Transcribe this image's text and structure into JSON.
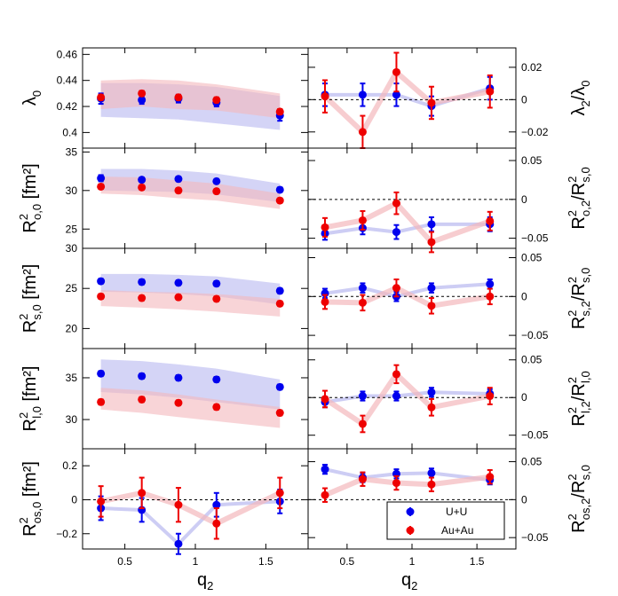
{
  "legend": {
    "entries": [
      {
        "label": "U+U",
        "color": "#0000ee"
      },
      {
        "label": "Au+Au",
        "color": "#ee0000"
      }
    ]
  },
  "colors": {
    "uu": "#0000ee",
    "auau": "#ee0000",
    "uu_band": "#b8b8f0",
    "auau_band": "#f4b8bc"
  },
  "x_axis": {
    "title_main": "q",
    "title_sub": "2",
    "range": [
      0.2,
      1.8
    ],
    "ticks": [
      0.5,
      1,
      1.5
    ],
    "tick_labels": [
      "0.5",
      "1",
      "1.5"
    ]
  },
  "chart_data": [
    {
      "type": "scatter",
      "column": "left",
      "row": 0,
      "ylabel": {
        "main": "λ",
        "sub": "0",
        "sup": "",
        "tail": ""
      },
      "ylim": [
        0.388,
        0.465
      ],
      "yticks": [
        0.4,
        0.42,
        0.44,
        0.46
      ],
      "ytick_labels": [
        "0.4",
        "0.42",
        "0.44",
        "0.46"
      ],
      "x": [
        0.33,
        0.62,
        0.88,
        1.15,
        1.6
      ],
      "series": [
        {
          "name": "U+U",
          "values": [
            0.426,
            0.425,
            0.426,
            0.423,
            0.413
          ],
          "err": [
            0.004,
            0.003,
            0.003,
            0.003,
            0.004
          ],
          "band_low": [
            0.412,
            0.411,
            0.41,
            0.407,
            0.402
          ],
          "band_high": [
            0.438,
            0.438,
            0.437,
            0.435,
            0.428
          ]
        },
        {
          "name": "Au+Au",
          "values": [
            0.427,
            0.43,
            0.427,
            0.425,
            0.416
          ],
          "err": [
            0.002,
            0.002,
            0.002,
            0.002,
            0.002
          ],
          "band_low": [
            0.418,
            0.42,
            0.418,
            0.417,
            0.411
          ],
          "band_high": [
            0.44,
            0.441,
            0.44,
            0.437,
            0.43
          ]
        }
      ]
    },
    {
      "type": "scatter",
      "column": "left",
      "row": 1,
      "ylabel": {
        "main": "R",
        "sub": "o,0",
        "sup": "2",
        "tail": " [fm²]"
      },
      "ylim": [
        22.5,
        35.5
      ],
      "yticks": [
        25,
        30,
        35
      ],
      "ytick_labels": [
        "25",
        "30",
        "35"
      ],
      "x": [
        0.33,
        0.62,
        0.88,
        1.15,
        1.6
      ],
      "series": [
        {
          "name": "U+U",
          "values": [
            31.6,
            31.4,
            31.5,
            31.2,
            30.1
          ],
          "err": [
            0.4,
            0.3,
            0.3,
            0.3,
            0.3
          ],
          "band_low": [
            30.0,
            29.9,
            29.8,
            29.5,
            28.5
          ],
          "band_high": [
            32.8,
            32.8,
            32.6,
            32.2,
            30.9
          ]
        },
        {
          "name": "Au+Au",
          "values": [
            30.5,
            30.4,
            30.0,
            29.9,
            28.7
          ],
          "err": [
            0.3,
            0.3,
            0.3,
            0.3,
            0.3
          ],
          "band_low": [
            29.6,
            29.4,
            29.0,
            28.7,
            27.6
          ],
          "band_high": [
            31.8,
            31.7,
            31.3,
            30.9,
            29.6
          ]
        }
      ]
    },
    {
      "type": "scatter",
      "column": "left",
      "row": 2,
      "ylabel": {
        "main": "R",
        "sub": "s,0",
        "sup": "2",
        "tail": " [fm²]"
      },
      "ylim": [
        17.5,
        30
      ],
      "yticks": [
        20,
        25,
        30
      ],
      "ytick_labels": [
        "20",
        "25",
        "30"
      ],
      "x": [
        0.33,
        0.62,
        0.88,
        1.15,
        1.6
      ],
      "series": [
        {
          "name": "U+U",
          "values": [
            25.9,
            25.8,
            25.7,
            25.6,
            24.7
          ],
          "err": [
            0.3,
            0.3,
            0.3,
            0.3,
            0.3
          ],
          "band_low": [
            24.6,
            24.5,
            24.3,
            24.0,
            23.0
          ],
          "band_high": [
            26.8,
            26.8,
            26.7,
            26.5,
            25.6
          ]
        },
        {
          "name": "Au+Au",
          "values": [
            24.0,
            23.8,
            23.9,
            23.7,
            23.1
          ],
          "err": [
            0.3,
            0.3,
            0.3,
            0.3,
            0.3
          ],
          "band_low": [
            22.8,
            22.6,
            22.4,
            22.1,
            21.5
          ],
          "band_high": [
            24.8,
            24.6,
            24.5,
            24.3,
            23.7
          ]
        }
      ]
    },
    {
      "type": "scatter",
      "column": "left",
      "row": 3,
      "ylabel": {
        "main": "R",
        "sub": "l,0",
        "sup": "2",
        "tail": " [fm²]"
      },
      "ylim": [
        26.5,
        38.5
      ],
      "yticks": [
        30,
        35
      ],
      "ytick_labels": [
        "30",
        "35"
      ],
      "x": [
        0.33,
        0.62,
        0.88,
        1.15,
        1.6
      ],
      "series": [
        {
          "name": "U+U",
          "values": [
            35.5,
            35.2,
            35.0,
            34.8,
            33.9
          ],
          "err": [
            0.3,
            0.3,
            0.3,
            0.3,
            0.3
          ],
          "band_low": [
            33.3,
            33.0,
            32.6,
            32.1,
            31.2
          ],
          "band_high": [
            37.2,
            37.0,
            36.6,
            36.1,
            34.8
          ]
        },
        {
          "name": "Au+Au",
          "values": [
            32.1,
            32.4,
            32.0,
            31.5,
            30.8
          ],
          "err": [
            0.3,
            0.3,
            0.3,
            0.3,
            0.3
          ],
          "band_low": [
            31.2,
            30.8,
            30.3,
            29.8,
            29.0
          ],
          "band_high": [
            33.8,
            33.5,
            33.0,
            32.4,
            31.5
          ]
        }
      ]
    },
    {
      "type": "scatter",
      "column": "left",
      "row": 4,
      "ylabel": {
        "main": "R",
        "sub": "os,0",
        "sup": "2",
        "tail": " [fm²]"
      },
      "ylim": [
        -0.29,
        0.3
      ],
      "yticks": [
        -0.2,
        0,
        0.2
      ],
      "ytick_labels": [
        "−0.2",
        "0",
        "0.2"
      ],
      "zero_line": true,
      "x": [
        0.33,
        0.62,
        0.88,
        1.15,
        1.6
      ],
      "series": [
        {
          "name": "U+U",
          "values": [
            -0.05,
            -0.06,
            -0.26,
            -0.03,
            -0.01
          ],
          "err": [
            0.07,
            0.07,
            0.06,
            0.07,
            0.07
          ]
        },
        {
          "name": "Au+Au",
          "values": [
            -0.01,
            0.04,
            -0.03,
            -0.14,
            0.04
          ],
          "err": [
            0.09,
            0.09,
            0.1,
            0.09,
            0.09
          ]
        }
      ]
    },
    {
      "type": "scatter",
      "column": "right",
      "row": 0,
      "ylabel": {
        "main": "λ",
        "sub": "2",
        "sup": "",
        "tail": "/λ",
        "tail_sub": "0"
      },
      "ylim": [
        -0.03,
        0.032
      ],
      "yticks": [
        -0.02,
        0,
        0.02
      ],
      "ytick_labels": [
        "−0.02",
        "0",
        "0.02"
      ],
      "zero_line": true,
      "x": [
        0.33,
        0.62,
        0.88,
        1.15,
        1.6
      ],
      "series": [
        {
          "name": "U+U",
          "values": [
            0.003,
            0.003,
            0.003,
            -0.004,
            0.007
          ],
          "err": [
            0.007,
            0.007,
            0.007,
            0.006,
            0.007
          ]
        },
        {
          "name": "Au+Au",
          "values": [
            0.002,
            -0.02,
            0.017,
            -0.002,
            0.005
          ],
          "err": [
            0.01,
            0.01,
            0.012,
            0.01,
            0.01
          ]
        }
      ]
    },
    {
      "type": "scatter",
      "column": "right",
      "row": 1,
      "ylabel": {
        "main": "R",
        "sub": "o,2",
        "sup": "2",
        "tail": "/R",
        "tail_sub": "s,0",
        "tail_sup": "2"
      },
      "ylim": [
        -0.063,
        0.066
      ],
      "yticks": [
        -0.05,
        0,
        0.05
      ],
      "ytick_labels": [
        "−0.05",
        "0",
        "0.05"
      ],
      "zero_line": true,
      "x": [
        0.33,
        0.62,
        0.88,
        1.15,
        1.6
      ],
      "series": [
        {
          "name": "U+U",
          "values": [
            -0.044,
            -0.037,
            -0.042,
            -0.032,
            -0.032
          ],
          "err": [
            0.008,
            0.008,
            0.009,
            0.009,
            0.009
          ]
        },
        {
          "name": "Au+Au",
          "values": [
            -0.036,
            -0.027,
            -0.005,
            -0.055,
            -0.028
          ],
          "err": [
            0.012,
            0.012,
            0.014,
            0.013,
            0.012
          ]
        }
      ]
    },
    {
      "type": "scatter",
      "column": "right",
      "row": 2,
      "ylabel": {
        "main": "R",
        "sub": "s,2",
        "sup": "2",
        "tail": "/R",
        "tail_sub": "s,0",
        "tail_sup": "2"
      },
      "ylim": [
        -0.067,
        0.062
      ],
      "yticks": [
        -0.05,
        0,
        0.05
      ],
      "ytick_labels": [
        "−0.05",
        "0",
        "0.05"
      ],
      "zero_line": true,
      "x": [
        0.33,
        0.62,
        0.88,
        1.15,
        1.6
      ],
      "series": [
        {
          "name": "U+U",
          "values": [
            0.004,
            0.011,
            0.0,
            0.011,
            0.016
          ],
          "err": [
            0.006,
            0.006,
            0.006,
            0.006,
            0.006
          ]
        },
        {
          "name": "Au+Au",
          "values": [
            -0.007,
            -0.008,
            0.011,
            -0.012,
            0.0
          ],
          "err": [
            0.009,
            0.01,
            0.011,
            0.01,
            0.01
          ]
        }
      ]
    },
    {
      "type": "scatter",
      "column": "right",
      "row": 3,
      "ylabel": {
        "main": "R",
        "sub": "l,2",
        "sup": "2",
        "tail": "/R",
        "tail_sub": "l,0",
        "tail_sup": "2"
      },
      "ylim": [
        -0.068,
        0.065
      ],
      "yticks": [
        -0.05,
        0,
        0.05
      ],
      "ytick_labels": [
        "−0.05",
        "0",
        "0.05"
      ],
      "zero_line": true,
      "x": [
        0.33,
        0.62,
        0.88,
        1.15,
        1.6
      ],
      "series": [
        {
          "name": "U+U",
          "values": [
            -0.006,
            0.002,
            0.002,
            0.007,
            0.005
          ],
          "err": [
            0.007,
            0.006,
            0.006,
            0.006,
            0.006
          ]
        },
        {
          "name": "Au+Au",
          "values": [
            -0.002,
            -0.035,
            0.031,
            -0.013,
            0.002
          ],
          "err": [
            0.011,
            0.011,
            0.012,
            0.011,
            0.011
          ]
        }
      ]
    },
    {
      "type": "scatter",
      "column": "right",
      "row": 4,
      "ylabel": {
        "main": "R",
        "sub": "os,2",
        "sup": "2",
        "tail": "/R",
        "tail_sub": "s,0",
        "tail_sup": "2"
      },
      "ylim": [
        -0.065,
        0.067
      ],
      "yticks": [
        -0.05,
        0,
        0.05
      ],
      "ytick_labels": [
        "−0.05",
        "0",
        "0.05"
      ],
      "zero_line": true,
      "x": [
        0.33,
        0.62,
        0.88,
        1.15,
        1.6
      ],
      "series": [
        {
          "name": "U+U",
          "values": [
            0.04,
            0.029,
            0.034,
            0.035,
            0.026
          ],
          "err": [
            0.006,
            0.006,
            0.006,
            0.006,
            0.006
          ]
        },
        {
          "name": "Au+Au",
          "values": [
            0.006,
            0.027,
            0.022,
            0.02,
            0.03
          ],
          "err": [
            0.009,
            0.009,
            0.009,
            0.009,
            0.009
          ]
        }
      ]
    }
  ]
}
